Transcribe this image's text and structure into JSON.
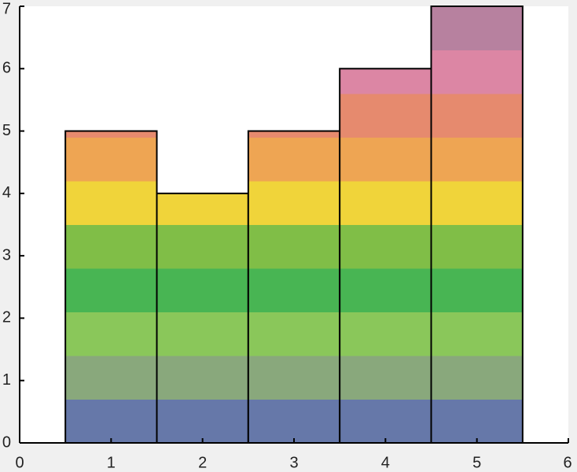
{
  "chart_data": {
    "type": "bar",
    "x": [
      1,
      2,
      3,
      4,
      5
    ],
    "values": [
      5,
      4,
      5,
      6,
      7
    ],
    "xlim": [
      0,
      6
    ],
    "xticks": [
      0,
      1,
      2,
      3,
      4,
      5,
      6
    ],
    "ylim": [
      0,
      7
    ],
    "yticks": [
      0,
      1,
      2,
      3,
      4,
      5,
      6,
      7
    ],
    "colormap": [
      "#6678a9",
      "#89a87c",
      "#8ac75a",
      "#48b553",
      "#80be47",
      "#f0d43a",
      "#eea553",
      "#e68a6e",
      "#dc86a4",
      "#b7819f"
    ],
    "edgecolor": "#000000"
  }
}
